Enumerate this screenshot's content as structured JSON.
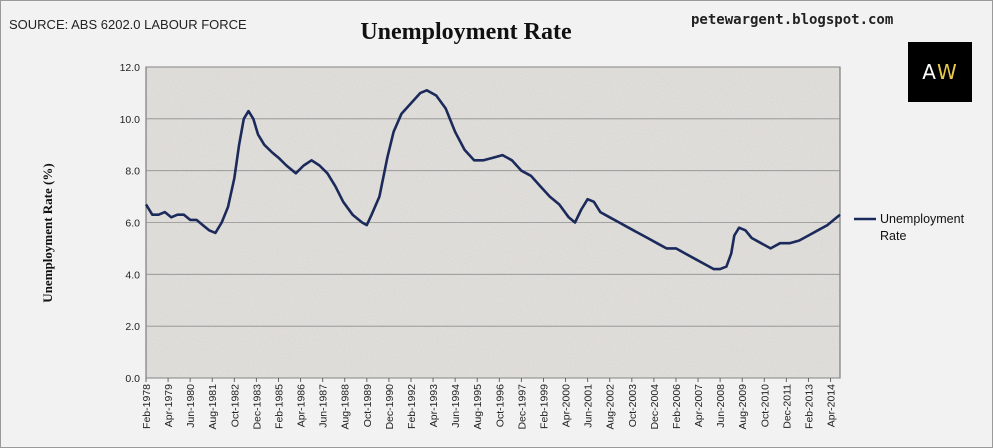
{
  "header": {
    "source": "SOURCE: ABS 6202.0 LABOUR FORCE",
    "blog": "petewargent.blogspot.com",
    "logo_a": "A",
    "logo_w": "W"
  },
  "colors": {
    "line": "#1b2a5a",
    "plot_bg": "#e3e1dd",
    "grid": "#8f8f8f"
  },
  "chart_data": {
    "type": "line",
    "title": "Unemployment Rate",
    "xlabel": "",
    "ylabel": "Unemployment Rate (%)",
    "ylim": [
      0,
      12
    ],
    "yticks": [
      "0.0",
      "2.0",
      "4.0",
      "6.0",
      "8.0",
      "10.0",
      "12.0"
    ],
    "x_start": "Feb-1978",
    "x_end": "Oct-2014",
    "xticks": [
      "Feb-1978",
      "Apr-1979",
      "Jun-1980",
      "Aug-1981",
      "Oct-1982",
      "Dec-1983",
      "Feb-1985",
      "Apr-1986",
      "Jun-1987",
      "Aug-1988",
      "Oct-1989",
      "Dec-1990",
      "Feb-1992",
      "Apr-1993",
      "Jun-1994",
      "Aug-1995",
      "Oct-1996",
      "Dec-1997",
      "Feb-1999",
      "Apr-2000",
      "Jun-2001",
      "Aug-2002",
      "Oct-2003",
      "Dec-2004",
      "Feb-2006",
      "Apr-2007",
      "Jun-2008",
      "Aug-2009",
      "Oct-2010",
      "Dec-2011",
      "Feb-2013",
      "Apr-2014"
    ],
    "legend": "right",
    "grid": true,
    "series": [
      {
        "name": "Unemployment Rate",
        "color": "#1b2a5a",
        "points": [
          [
            "Feb-1978",
            6.7
          ],
          [
            "Jun-1978",
            6.3
          ],
          [
            "Oct-1978",
            6.3
          ],
          [
            "Feb-1979",
            6.4
          ],
          [
            "Jun-1979",
            6.2
          ],
          [
            "Oct-1979",
            6.3
          ],
          [
            "Feb-1980",
            6.3
          ],
          [
            "Jun-1980",
            6.1
          ],
          [
            "Oct-1980",
            6.1
          ],
          [
            "Feb-1981",
            5.9
          ],
          [
            "Jun-1981",
            5.7
          ],
          [
            "Oct-1981",
            5.6
          ],
          [
            "Feb-1982",
            6.0
          ],
          [
            "Jun-1982",
            6.6
          ],
          [
            "Oct-1982",
            7.7
          ],
          [
            "Jan-1983",
            9.0
          ],
          [
            "Apr-1983",
            10.0
          ],
          [
            "Jul-1983",
            10.3
          ],
          [
            "Oct-1983",
            10.0
          ],
          [
            "Jan-1984",
            9.4
          ],
          [
            "May-1984",
            9.0
          ],
          [
            "Oct-1984",
            8.7
          ],
          [
            "Feb-1985",
            8.5
          ],
          [
            "Jul-1985",
            8.2
          ],
          [
            "Jan-1986",
            7.9
          ],
          [
            "Jun-1986",
            8.2
          ],
          [
            "Nov-1986",
            8.4
          ],
          [
            "Apr-1987",
            8.2
          ],
          [
            "Sep-1987",
            7.9
          ],
          [
            "Feb-1988",
            7.4
          ],
          [
            "Jul-1988",
            6.8
          ],
          [
            "Jan-1989",
            6.3
          ],
          [
            "Jul-1989",
            6.0
          ],
          [
            "Oct-1989",
            5.9
          ],
          [
            "Jan-1990",
            6.3
          ],
          [
            "Jun-1990",
            7.0
          ],
          [
            "Nov-1990",
            8.5
          ],
          [
            "Mar-1991",
            9.5
          ],
          [
            "Aug-1991",
            10.2
          ],
          [
            "Feb-1992",
            10.6
          ],
          [
            "Aug-1992",
            11.0
          ],
          [
            "Dec-1992",
            11.1
          ],
          [
            "Jun-1993",
            10.9
          ],
          [
            "Dec-1993",
            10.4
          ],
          [
            "Jun-1994",
            9.5
          ],
          [
            "Dec-1994",
            8.8
          ],
          [
            "Jun-1995",
            8.4
          ],
          [
            "Dec-1995",
            8.4
          ],
          [
            "Jun-1996",
            8.5
          ],
          [
            "Dec-1996",
            8.6
          ],
          [
            "Jun-1997",
            8.4
          ],
          [
            "Dec-1997",
            8.0
          ],
          [
            "Jun-1998",
            7.8
          ],
          [
            "Dec-1998",
            7.4
          ],
          [
            "Jun-1999",
            7.0
          ],
          [
            "Dec-1999",
            6.7
          ],
          [
            "Jun-2000",
            6.2
          ],
          [
            "Oct-2000",
            6.0
          ],
          [
            "Feb-2001",
            6.5
          ],
          [
            "Jun-2001",
            6.9
          ],
          [
            "Oct-2001",
            6.8
          ],
          [
            "Feb-2002",
            6.4
          ],
          [
            "Aug-2002",
            6.2
          ],
          [
            "Feb-2003",
            6.0
          ],
          [
            "Aug-2003",
            5.8
          ],
          [
            "Feb-2004",
            5.6
          ],
          [
            "Aug-2004",
            5.4
          ],
          [
            "Feb-2005",
            5.2
          ],
          [
            "Aug-2005",
            5.0
          ],
          [
            "Feb-2006",
            5.0
          ],
          [
            "Aug-2006",
            4.8
          ],
          [
            "Feb-2007",
            4.6
          ],
          [
            "Aug-2007",
            4.4
          ],
          [
            "Feb-2008",
            4.2
          ],
          [
            "Jun-2008",
            4.2
          ],
          [
            "Oct-2008",
            4.3
          ],
          [
            "Jan-2009",
            4.8
          ],
          [
            "Mar-2009",
            5.5
          ],
          [
            "Jun-2009",
            5.8
          ],
          [
            "Oct-2009",
            5.7
          ],
          [
            "Feb-2010",
            5.4
          ],
          [
            "Aug-2010",
            5.2
          ],
          [
            "Feb-2011",
            5.0
          ],
          [
            "Aug-2011",
            5.2
          ],
          [
            "Feb-2012",
            5.2
          ],
          [
            "Aug-2012",
            5.3
          ],
          [
            "Feb-2013",
            5.5
          ],
          [
            "Aug-2013",
            5.7
          ],
          [
            "Feb-2014",
            5.9
          ],
          [
            "Jun-2014",
            6.1
          ],
          [
            "Oct-2014",
            6.3
          ]
        ]
      }
    ]
  }
}
